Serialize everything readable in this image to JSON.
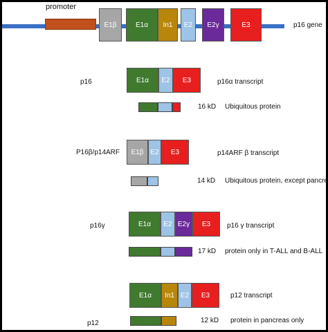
{
  "colors": {
    "gene_line": "#3a6fc4",
    "promoter": "#c0501c",
    "E1b": "#a6a6a6",
    "E1a": "#3f7a2f",
    "In1": "#b8860b",
    "E2": "#9dc3e6",
    "E2g": "#6a2a9a",
    "E3": "#e81f1f"
  },
  "gene": {
    "promoter_label": "promoter",
    "gene_label": "p16  gene",
    "exons": [
      "E1β",
      "E1α",
      "In1",
      "E2",
      "E2γ",
      "E3"
    ]
  },
  "transcripts": [
    {
      "name": "p16",
      "exons": [
        "E1α",
        "E2",
        "E3"
      ],
      "transcript_label": "p16α  transcript",
      "protein_size": "16 kD",
      "protein_desc": "Ubiquitous protein"
    },
    {
      "name": "P16β/p14ARF",
      "exons": [
        "E1β",
        "E2",
        "E3"
      ],
      "transcript_label": "p14ARF β transcript",
      "protein_size": "14 kD",
      "protein_desc": "Ubiquitous protein, except pancreas"
    },
    {
      "name": "p16γ",
      "exons": [
        "E1α",
        "E2",
        "E2γ",
        "E3"
      ],
      "transcript_label": "p16 γ  transcript",
      "protein_size": "17 kD",
      "protein_desc": "protein only in T-ALL and B-ALL"
    },
    {
      "name": "p12",
      "exons": [
        "E1α",
        "In1",
        "E2",
        "E3"
      ],
      "transcript_label": "p12  transcript",
      "protein_size": "12 kD",
      "protein_desc": "protein in pancreas only"
    }
  ]
}
